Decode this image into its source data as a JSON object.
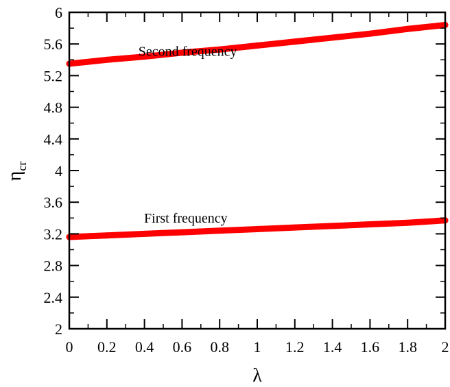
{
  "chart_data": {
    "type": "line",
    "xlabel": "λ",
    "ylabel": "η",
    "ylabel_sub": "cr",
    "xlim": [
      0,
      2
    ],
    "ylim": [
      2,
      6
    ],
    "x_ticks": [
      "0",
      "0.2",
      "0.4",
      "0.6",
      "0.8",
      "1",
      "1.2",
      "1.4",
      "1.6",
      "1.8",
      "2"
    ],
    "y_ticks": [
      "2",
      "2.4",
      "2.8",
      "3.2",
      "3.6",
      "4",
      "4.4",
      "4.8",
      "5.2",
      "5.6",
      "6"
    ],
    "grid": false,
    "series": [
      {
        "name": "Second frequency",
        "color": "#ff0000",
        "x": [
          0,
          0.2,
          0.4,
          0.6,
          0.8,
          1.0,
          1.2,
          1.4,
          1.6,
          1.8,
          2.0
        ],
        "y": [
          5.35,
          5.4,
          5.44,
          5.49,
          5.53,
          5.58,
          5.63,
          5.68,
          5.73,
          5.79,
          5.84
        ]
      },
      {
        "name": "First frequency",
        "color": "#ff0000",
        "x": [
          0,
          0.2,
          0.4,
          0.6,
          0.8,
          1.0,
          1.2,
          1.4,
          1.6,
          1.8,
          2.0
        ],
        "y": [
          3.16,
          3.18,
          3.2,
          3.22,
          3.24,
          3.26,
          3.28,
          3.3,
          3.32,
          3.34,
          3.37
        ]
      }
    ],
    "annotations": [
      {
        "text": "Second frequency",
        "x": 0.63,
        "y": 5.45
      },
      {
        "text": "First frequency",
        "x": 0.62,
        "y": 3.34
      }
    ]
  }
}
